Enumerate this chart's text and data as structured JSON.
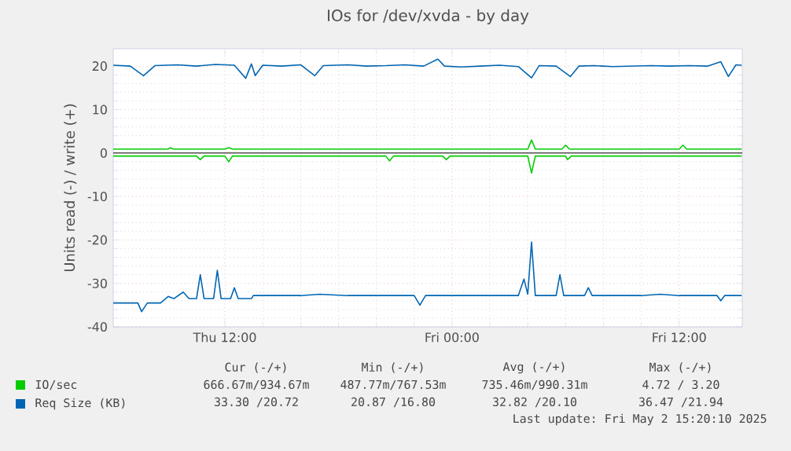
{
  "chart_data": {
    "type": "line",
    "title": "IOs for /dev/xvda - by day",
    "ylabel": "Units read (-) / write (+)",
    "xlim": [
      "2025-05-01T06:06",
      "2025-05-02T15:20"
    ],
    "ylim": [
      -40,
      24
    ],
    "xticks": [
      {
        "value": "2025-05-01T12:00",
        "label": "Thu 12:00"
      },
      {
        "value": "2025-05-02T00:00",
        "label": "Fri 00:00"
      },
      {
        "value": "2025-05-02T12:00",
        "label": "Fri 12:00"
      }
    ],
    "yticks": [
      -40,
      -30,
      -20,
      -10,
      0,
      10,
      20
    ],
    "grid": true,
    "legend": "bottom",
    "ref_lines": [
      {
        "axis": "y",
        "value": 0,
        "color": "#000000"
      }
    ],
    "series": [
      {
        "name": "IO/sec",
        "color": "#00cc00",
        "x": [
          "2025-05-01T06:06",
          "2025-05-01T09:00",
          "2025-05-01T09:06",
          "2025-05-01T09:18",
          "2025-05-01T12:00",
          "2025-05-01T12:12",
          "2025-05-01T12:24",
          "2025-05-01T18:00",
          "2025-05-01T22:00",
          "2025-05-02T04:00",
          "2025-05-02T04:12",
          "2025-05-02T04:24",
          "2025-05-02T05:48",
          "2025-05-02T06:00",
          "2025-05-02T06:12",
          "2025-05-02T12:00",
          "2025-05-02T12:12",
          "2025-05-02T12:24",
          "2025-05-02T15:18"
        ],
        "values": [
          0.9,
          0.9,
          1.2,
          0.9,
          0.9,
          1.2,
          0.9,
          0.9,
          0.9,
          0.9,
          3.0,
          0.9,
          0.9,
          1.8,
          0.9,
          0.9,
          1.8,
          0.9,
          0.9
        ]
      },
      {
        "color": "#00cc00",
        "x": [
          "2025-05-01T06:06",
          "2025-05-01T10:30",
          "2025-05-01T10:42",
          "2025-05-01T10:54",
          "2025-05-01T12:00",
          "2025-05-01T12:12",
          "2025-05-01T12:24",
          "2025-05-01T20:30",
          "2025-05-01T20:42",
          "2025-05-01T20:54",
          "2025-05-01T23:30",
          "2025-05-01T23:42",
          "2025-05-01T23:54",
          "2025-05-02T04:00",
          "2025-05-02T04:12",
          "2025-05-02T04:24",
          "2025-05-02T06:00",
          "2025-05-02T06:06",
          "2025-05-02T06:18",
          "2025-05-02T15:18"
        ],
        "values": [
          -0.7,
          -0.7,
          -1.5,
          -0.7,
          -0.7,
          -2.0,
          -0.7,
          -0.7,
          -1.8,
          -0.7,
          -0.7,
          -1.5,
          -0.7,
          -0.7,
          -4.6,
          -0.7,
          -0.7,
          -1.5,
          -0.7,
          -0.7
        ]
      },
      {
        "name": "Req Size (KB)",
        "color": "#0066b3",
        "x": [
          "2025-05-01T06:06",
          "2025-05-01T07:00",
          "2025-05-01T07:42",
          "2025-05-01T08:18",
          "2025-05-01T09:30",
          "2025-05-01T10:30",
          "2025-05-01T11:30",
          "2025-05-01T12:30",
          "2025-05-01T13:06",
          "2025-05-01T13:24",
          "2025-05-01T13:36",
          "2025-05-01T14:00",
          "2025-05-01T15:00",
          "2025-05-01T16:00",
          "2025-05-01T16:45",
          "2025-05-01T17:12",
          "2025-05-01T18:30",
          "2025-05-01T19:30",
          "2025-05-01T20:30",
          "2025-05-01T21:30",
          "2025-05-01T22:30",
          "2025-05-01T23:15",
          "2025-05-01T23:36",
          "2025-05-02T00:30",
          "2025-05-02T01:30",
          "2025-05-02T02:30",
          "2025-05-02T03:30",
          "2025-05-02T04:12",
          "2025-05-02T04:36",
          "2025-05-02T05:30",
          "2025-05-02T06:15",
          "2025-05-02T06:42",
          "2025-05-02T07:30",
          "2025-05-02T08:30",
          "2025-05-02T09:30",
          "2025-05-02T10:30",
          "2025-05-02T11:30",
          "2025-05-02T12:30",
          "2025-05-02T13:30",
          "2025-05-02T14:12",
          "2025-05-02T14:36",
          "2025-05-02T15:00",
          "2025-05-02T15:18"
        ],
        "values": [
          20.2,
          20.0,
          17.8,
          20.1,
          20.3,
          20.0,
          20.4,
          20.2,
          17.2,
          20.5,
          17.8,
          20.2,
          20.0,
          20.3,
          17.8,
          20.1,
          20.3,
          20.0,
          20.1,
          20.3,
          20.0,
          21.6,
          20.0,
          19.8,
          20.0,
          20.2,
          19.9,
          17.3,
          20.1,
          20.0,
          17.6,
          20.0,
          20.1,
          19.9,
          20.0,
          20.1,
          20.0,
          20.1,
          20.0,
          21.0,
          17.6,
          20.3,
          20.2
        ]
      },
      {
        "color": "#0066b3",
        "x": [
          "2025-05-01T06:06",
          "2025-05-01T07:24",
          "2025-05-01T07:36",
          "2025-05-01T07:54",
          "2025-05-01T08:36",
          "2025-05-01T09:00",
          "2025-05-01T09:18",
          "2025-05-01T09:48",
          "2025-05-01T10:06",
          "2025-05-01T10:30",
          "2025-05-01T10:42",
          "2025-05-01T10:54",
          "2025-05-01T11:24",
          "2025-05-01T11:36",
          "2025-05-01T11:48",
          "2025-05-01T12:18",
          "2025-05-01T12:30",
          "2025-05-01T12:42",
          "2025-05-01T13:24",
          "2025-05-01T13:30",
          "2025-05-01T16:00",
          "2025-05-01T17:00",
          "2025-05-01T18:30",
          "2025-05-01T20:00",
          "2025-05-01T22:00",
          "2025-05-01T22:18",
          "2025-05-01T22:36",
          "2025-05-02T00:00",
          "2025-05-02T02:00",
          "2025-05-02T03:30",
          "2025-05-02T03:48",
          "2025-05-02T04:00",
          "2025-05-02T04:12",
          "2025-05-02T04:24",
          "2025-05-02T05:30",
          "2025-05-02T05:42",
          "2025-05-02T05:54",
          "2025-05-02T07:00",
          "2025-05-02T07:12",
          "2025-05-02T07:24",
          "2025-05-02T10:00",
          "2025-05-02T11:00",
          "2025-05-02T12:00",
          "2025-05-02T14:00",
          "2025-05-02T14:12",
          "2025-05-02T14:24",
          "2025-05-02T15:18"
        ],
        "values": [
          -34.5,
          -34.5,
          -36.5,
          -34.5,
          -34.5,
          -33,
          -33.5,
          -32,
          -33.5,
          -33.5,
          -28,
          -33.5,
          -33.5,
          -27,
          -33.5,
          -33.5,
          -31,
          -33.5,
          -33.5,
          -32.8,
          -32.8,
          -32.5,
          -32.8,
          -32.8,
          -32.8,
          -35,
          -32.8,
          -32.8,
          -32.8,
          -32.8,
          -29,
          -32.5,
          -20.5,
          -32.8,
          -32.8,
          -28,
          -32.8,
          -32.8,
          -31,
          -32.8,
          -32.8,
          -32.5,
          -32.8,
          -32.8,
          -34,
          -32.8,
          -32.8
        ]
      }
    ],
    "annotations": [
      "Cur (-/+)",
      "Min (-/+)",
      "Avg (-/+)",
      "Max (-/+)",
      "666.67m/934.67m",
      "487.77m/767.53m",
      "735.46m/990.31m",
      "4.72 / 3.20",
      "33.30 /20.72",
      "20.87 /16.80",
      "32.82 /20.10",
      "36.47 /21.94",
      "Last update: Fri May  2 15:20:10 2025"
    ]
  }
}
